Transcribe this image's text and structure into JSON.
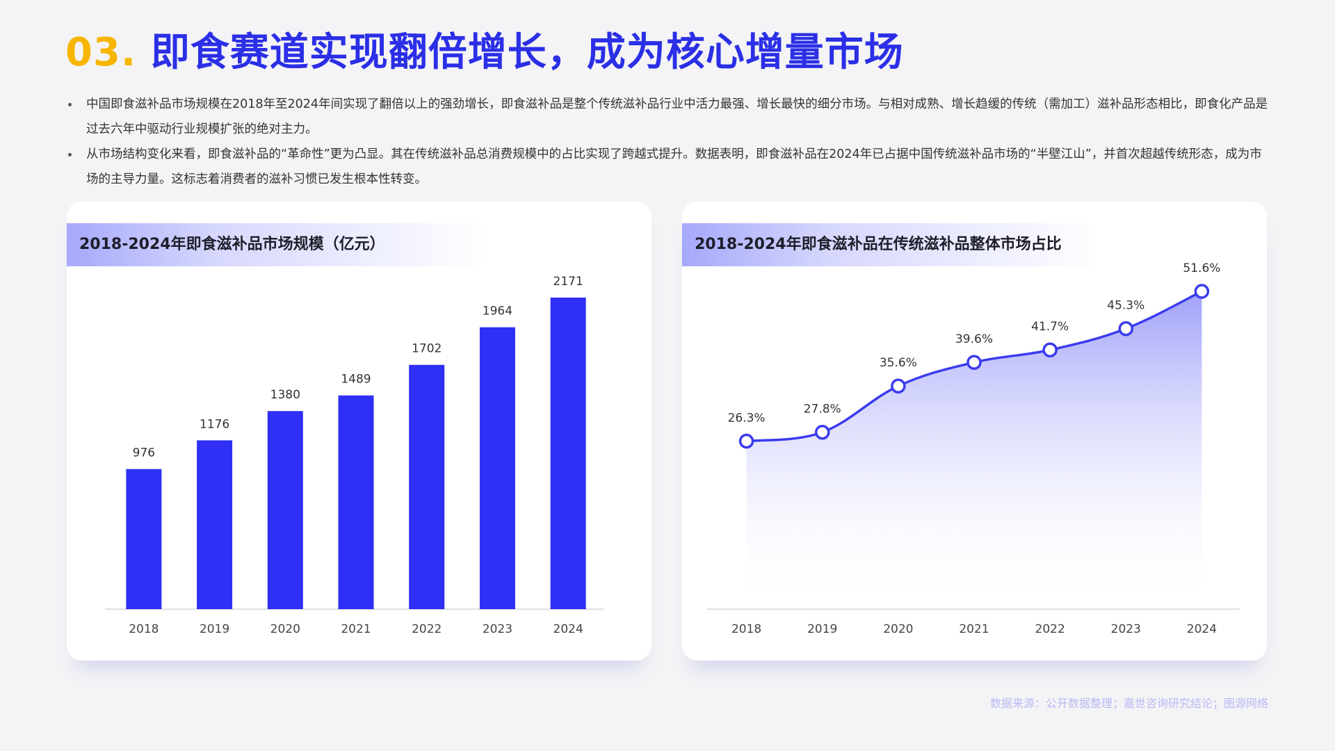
{
  "title": {
    "number": "03.",
    "text": "即食赛道实现翻倍增长，成为核心增量市场"
  },
  "bullets": [
    "中国即食滋补品市场规模在2018年至2024年间实现了翻倍以上的强劲增长，即食滋补品是整个传统滋补品行业中活力最强、增长最快的细分市场。与相对成熟、增长趋缓的传统（需加工）滋补品形态相比，即食化产品是过去六年中驱动行业规模扩张的绝对主力。",
    "从市场结构变化来看，即食滋补品的“革命性”更为凸显。其在传统滋补品总消费规模中的占比实现了跨越式提升。数据表明，即食滋补品在2024年已占据中国传统滋补品市场的“半壁江山”，并首次超越传统形态，成为市场的主导力量。这标志着消费者的滋补习惯已发生根本性转变。"
  ],
  "source": "数据来源：公开数据整理；嘉世咨询研究结论；图源网络",
  "colors": {
    "accent_yellow": "#f7b500",
    "accent_blue": "#2b2fe6",
    "bar": "#2f2ff5",
    "line": "#3b3bee",
    "source": "#b7b9f2"
  },
  "chart_data": [
    {
      "type": "bar",
      "title": "2018-2024年即食滋补品市场规模（亿元）",
      "categories": [
        "2018",
        "2019",
        "2020",
        "2021",
        "2022",
        "2023",
        "2024"
      ],
      "values": [
        976,
        1176,
        1380,
        1489,
        1702,
        1964,
        2171
      ],
      "value_labels": [
        "976",
        "1176",
        "1380",
        "1489",
        "1702",
        "1964",
        "2171"
      ],
      "ylim": [
        0,
        2500
      ],
      "grid": false
    },
    {
      "type": "area",
      "title": "2018-2024年即食滋补品在传统滋补品整体市场占比",
      "categories": [
        "2018",
        "2019",
        "2020",
        "2021",
        "2022",
        "2023",
        "2024"
      ],
      "values": [
        26.3,
        27.8,
        35.6,
        39.6,
        41.7,
        45.3,
        51.6
      ],
      "value_labels": [
        "26.3%",
        "27.8%",
        "35.6%",
        "39.6%",
        "41.7%",
        "45.3%",
        "51.6%"
      ],
      "ylim": [
        0,
        60
      ],
      "grid": false
    }
  ]
}
